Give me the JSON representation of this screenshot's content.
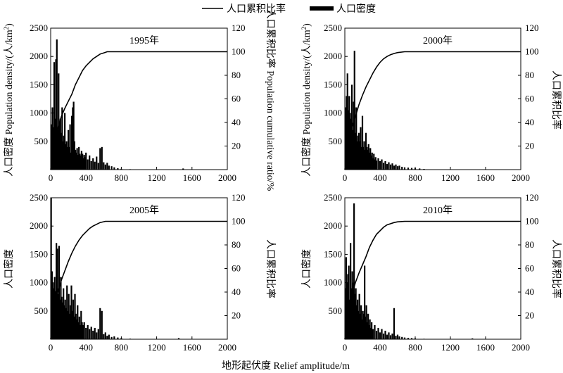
{
  "legend": {
    "line_label": "人口累积比率",
    "bar_label": "人口密度",
    "placement": "top-center"
  },
  "axes": {
    "xlabel": "地形起伏度 Relief amplitude/m",
    "ylabel_left": "人口密度 Population density/(人/km²)",
    "ylabel_left_top": "人口密度 Population density/(人/km",
    "ylabel_left_sup": "2",
    "ylabel_left_tail": ")",
    "ylabel_left_bottom": "人口密度",
    "ylabel_right": "人口累积比率 Population cumulative ratio/%",
    "ylabel_right_bottom": "人口累积比率",
    "x_ticks": [
      "0",
      "400",
      "800",
      "1200",
      "1600",
      "2000"
    ],
    "y_left_ticks": [
      "500",
      "1000",
      "1500",
      "2000",
      "2500"
    ],
    "y_right_ticks": [
      "20",
      "40",
      "60",
      "80",
      "100",
      "120"
    ]
  },
  "chart_data": [
    {
      "type": "bar",
      "title": "1995年",
      "xlim": [
        0,
        2000
      ],
      "ylim_left": [
        0,
        2500
      ],
      "ylim_right": [
        0,
        120
      ],
      "bars": [
        {
          "x": 10,
          "y": 800
        },
        {
          "x": 20,
          "y": 1100
        },
        {
          "x": 30,
          "y": 750
        },
        {
          "x": 40,
          "y": 1900
        },
        {
          "x": 50,
          "y": 900
        },
        {
          "x": 60,
          "y": 1950
        },
        {
          "x": 70,
          "y": 2300
        },
        {
          "x": 80,
          "y": 700
        },
        {
          "x": 90,
          "y": 1700
        },
        {
          "x": 100,
          "y": 850
        },
        {
          "x": 110,
          "y": 900
        },
        {
          "x": 120,
          "y": 650
        },
        {
          "x": 130,
          "y": 1100
        },
        {
          "x": 140,
          "y": 500
        },
        {
          "x": 150,
          "y": 600
        },
        {
          "x": 160,
          "y": 1000
        },
        {
          "x": 170,
          "y": 450
        },
        {
          "x": 180,
          "y": 500
        },
        {
          "x": 190,
          "y": 400
        },
        {
          "x": 200,
          "y": 700
        },
        {
          "x": 210,
          "y": 400
        },
        {
          "x": 220,
          "y": 800
        },
        {
          "x": 230,
          "y": 300
        },
        {
          "x": 240,
          "y": 950
        },
        {
          "x": 250,
          "y": 1100
        },
        {
          "x": 260,
          "y": 1200
        },
        {
          "x": 270,
          "y": 500
        },
        {
          "x": 280,
          "y": 350
        },
        {
          "x": 290,
          "y": 300
        },
        {
          "x": 300,
          "y": 380
        },
        {
          "x": 310,
          "y": 260
        },
        {
          "x": 320,
          "y": 400
        },
        {
          "x": 330,
          "y": 280
        },
        {
          "x": 340,
          "y": 250
        },
        {
          "x": 350,
          "y": 330
        },
        {
          "x": 360,
          "y": 280
        },
        {
          "x": 370,
          "y": 200
        },
        {
          "x": 380,
          "y": 260
        },
        {
          "x": 390,
          "y": 220
        },
        {
          "x": 400,
          "y": 300
        },
        {
          "x": 420,
          "y": 180
        },
        {
          "x": 440,
          "y": 250
        },
        {
          "x": 460,
          "y": 150
        },
        {
          "x": 480,
          "y": 200
        },
        {
          "x": 500,
          "y": 140
        },
        {
          "x": 520,
          "y": 230
        },
        {
          "x": 540,
          "y": 120
        },
        {
          "x": 560,
          "y": 380
        },
        {
          "x": 580,
          "y": 400
        },
        {
          "x": 600,
          "y": 130
        },
        {
          "x": 620,
          "y": 90
        },
        {
          "x": 640,
          "y": 120
        },
        {
          "x": 660,
          "y": 70
        },
        {
          "x": 690,
          "y": 60
        },
        {
          "x": 720,
          "y": 40
        },
        {
          "x": 760,
          "y": 25
        },
        {
          "x": 800,
          "y": 15
        },
        {
          "x": 900,
          "y": 8
        },
        {
          "x": 1000,
          "y": 5
        },
        {
          "x": 1500,
          "y": 20
        }
      ],
      "cumulative": [
        [
          0,
          0
        ],
        [
          40,
          20
        ],
        [
          80,
          35
        ],
        [
          120,
          45
        ],
        [
          160,
          52
        ],
        [
          200,
          58
        ],
        [
          240,
          64
        ],
        [
          280,
          72
        ],
        [
          320,
          78
        ],
        [
          360,
          84
        ],
        [
          400,
          88
        ],
        [
          440,
          91
        ],
        [
          480,
          94
        ],
        [
          520,
          96
        ],
        [
          560,
          98
        ],
        [
          600,
          99
        ],
        [
          640,
          100
        ],
        [
          700,
          100
        ],
        [
          800,
          100
        ],
        [
          2000,
          100
        ]
      ]
    },
    {
      "type": "bar",
      "title": "2000年",
      "xlim": [
        0,
        2000
      ],
      "ylim_left": [
        0,
        2500
      ],
      "ylim_right": [
        0,
        120
      ],
      "bars": [
        {
          "x": 10,
          "y": 1100
        },
        {
          "x": 20,
          "y": 1300
        },
        {
          "x": 30,
          "y": 1700
        },
        {
          "x": 40,
          "y": 1050
        },
        {
          "x": 50,
          "y": 1300
        },
        {
          "x": 60,
          "y": 1000
        },
        {
          "x": 70,
          "y": 900
        },
        {
          "x": 80,
          "y": 1500
        },
        {
          "x": 90,
          "y": 700
        },
        {
          "x": 100,
          "y": 1200
        },
        {
          "x": 110,
          "y": 2100
        },
        {
          "x": 120,
          "y": 650
        },
        {
          "x": 130,
          "y": 1100
        },
        {
          "x": 140,
          "y": 500
        },
        {
          "x": 150,
          "y": 600
        },
        {
          "x": 160,
          "y": 650
        },
        {
          "x": 170,
          "y": 500
        },
        {
          "x": 180,
          "y": 750
        },
        {
          "x": 190,
          "y": 400
        },
        {
          "x": 200,
          "y": 950
        },
        {
          "x": 210,
          "y": 400
        },
        {
          "x": 220,
          "y": 500
        },
        {
          "x": 230,
          "y": 350
        },
        {
          "x": 240,
          "y": 650
        },
        {
          "x": 250,
          "y": 400
        },
        {
          "x": 260,
          "y": 350
        },
        {
          "x": 270,
          "y": 450
        },
        {
          "x": 280,
          "y": 300
        },
        {
          "x": 290,
          "y": 380
        },
        {
          "x": 300,
          "y": 250
        },
        {
          "x": 310,
          "y": 300
        },
        {
          "x": 320,
          "y": 200
        },
        {
          "x": 330,
          "y": 280
        },
        {
          "x": 340,
          "y": 180
        },
        {
          "x": 350,
          "y": 220
        },
        {
          "x": 360,
          "y": 160
        },
        {
          "x": 380,
          "y": 200
        },
        {
          "x": 400,
          "y": 150
        },
        {
          "x": 420,
          "y": 180
        },
        {
          "x": 440,
          "y": 120
        },
        {
          "x": 460,
          "y": 150
        },
        {
          "x": 480,
          "y": 100
        },
        {
          "x": 500,
          "y": 130
        },
        {
          "x": 520,
          "y": 90
        },
        {
          "x": 540,
          "y": 110
        },
        {
          "x": 560,
          "y": 70
        },
        {
          "x": 580,
          "y": 90
        },
        {
          "x": 600,
          "y": 60
        },
        {
          "x": 620,
          "y": 70
        },
        {
          "x": 650,
          "y": 50
        },
        {
          "x": 680,
          "y": 40
        },
        {
          "x": 720,
          "y": 35
        },
        {
          "x": 760,
          "y": 30
        },
        {
          "x": 800,
          "y": 25
        },
        {
          "x": 850,
          "y": 20
        },
        {
          "x": 900,
          "y": 12
        },
        {
          "x": 1000,
          "y": 5
        }
      ],
      "cumulative": [
        [
          0,
          0
        ],
        [
          40,
          22
        ],
        [
          80,
          36
        ],
        [
          120,
          45
        ],
        [
          160,
          55
        ],
        [
          200,
          63
        ],
        [
          240,
          70
        ],
        [
          280,
          76
        ],
        [
          320,
          82
        ],
        [
          360,
          87
        ],
        [
          400,
          91
        ],
        [
          440,
          94
        ],
        [
          480,
          96
        ],
        [
          520,
          97.5
        ],
        [
          560,
          98.5
        ],
        [
          600,
          99.3
        ],
        [
          680,
          100
        ],
        [
          800,
          100
        ],
        [
          2000,
          100
        ]
      ]
    },
    {
      "type": "bar",
      "title": "2005年",
      "xlim": [
        0,
        2000
      ],
      "ylim_left": [
        0,
        2500
      ],
      "ylim_right": [
        0,
        120
      ],
      "bars": [
        {
          "x": 5,
          "y": 2500
        },
        {
          "x": 15,
          "y": 1200
        },
        {
          "x": 25,
          "y": 1000
        },
        {
          "x": 35,
          "y": 900
        },
        {
          "x": 45,
          "y": 1100
        },
        {
          "x": 55,
          "y": 850
        },
        {
          "x": 65,
          "y": 1700
        },
        {
          "x": 75,
          "y": 1600
        },
        {
          "x": 85,
          "y": 800
        },
        {
          "x": 95,
          "y": 1650
        },
        {
          "x": 105,
          "y": 700
        },
        {
          "x": 115,
          "y": 1100
        },
        {
          "x": 125,
          "y": 750
        },
        {
          "x": 135,
          "y": 650
        },
        {
          "x": 145,
          "y": 900
        },
        {
          "x": 155,
          "y": 600
        },
        {
          "x": 165,
          "y": 700
        },
        {
          "x": 175,
          "y": 550
        },
        {
          "x": 185,
          "y": 950
        },
        {
          "x": 195,
          "y": 500
        },
        {
          "x": 205,
          "y": 800
        },
        {
          "x": 215,
          "y": 450
        },
        {
          "x": 225,
          "y": 600
        },
        {
          "x": 235,
          "y": 950
        },
        {
          "x": 245,
          "y": 500
        },
        {
          "x": 255,
          "y": 700
        },
        {
          "x": 265,
          "y": 400
        },
        {
          "x": 275,
          "y": 800
        },
        {
          "x": 285,
          "y": 450
        },
        {
          "x": 295,
          "y": 350
        },
        {
          "x": 305,
          "y": 600
        },
        {
          "x": 315,
          "y": 300
        },
        {
          "x": 325,
          "y": 400
        },
        {
          "x": 335,
          "y": 250
        },
        {
          "x": 345,
          "y": 500
        },
        {
          "x": 355,
          "y": 300
        },
        {
          "x": 365,
          "y": 250
        },
        {
          "x": 380,
          "y": 300
        },
        {
          "x": 400,
          "y": 200
        },
        {
          "x": 420,
          "y": 250
        },
        {
          "x": 440,
          "y": 180
        },
        {
          "x": 460,
          "y": 220
        },
        {
          "x": 480,
          "y": 150
        },
        {
          "x": 500,
          "y": 200
        },
        {
          "x": 520,
          "y": 120
        },
        {
          "x": 540,
          "y": 180
        },
        {
          "x": 560,
          "y": 550
        },
        {
          "x": 580,
          "y": 500
        },
        {
          "x": 600,
          "y": 90
        },
        {
          "x": 620,
          "y": 120
        },
        {
          "x": 640,
          "y": 60
        },
        {
          "x": 660,
          "y": 80
        },
        {
          "x": 690,
          "y": 40
        },
        {
          "x": 720,
          "y": 50
        },
        {
          "x": 760,
          "y": 30
        },
        {
          "x": 800,
          "y": 20
        },
        {
          "x": 900,
          "y": 10
        },
        {
          "x": 1450,
          "y": 20
        }
      ],
      "cumulative": [
        [
          0,
          0
        ],
        [
          40,
          24
        ],
        [
          80,
          40
        ],
        [
          120,
          50
        ],
        [
          160,
          58
        ],
        [
          200,
          66
        ],
        [
          240,
          73
        ],
        [
          280,
          79
        ],
        [
          320,
          84
        ],
        [
          360,
          88
        ],
        [
          400,
          91
        ],
        [
          440,
          94
        ],
        [
          480,
          96
        ],
        [
          520,
          97.5
        ],
        [
          560,
          99
        ],
        [
          620,
          100
        ],
        [
          700,
          100
        ],
        [
          800,
          100
        ],
        [
          2000,
          100
        ]
      ]
    },
    {
      "type": "bar",
      "title": "2010年",
      "xlim": [
        0,
        2000
      ],
      "ylim_left": [
        0,
        2500
      ],
      "ylim_right": [
        0,
        120
      ],
      "bars": [
        {
          "x": 5,
          "y": 900
        },
        {
          "x": 15,
          "y": 1450
        },
        {
          "x": 25,
          "y": 1000
        },
        {
          "x": 35,
          "y": 1150
        },
        {
          "x": 45,
          "y": 1300
        },
        {
          "x": 55,
          "y": 700
        },
        {
          "x": 65,
          "y": 1700
        },
        {
          "x": 75,
          "y": 900
        },
        {
          "x": 85,
          "y": 1200
        },
        {
          "x": 95,
          "y": 1000
        },
        {
          "x": 105,
          "y": 2400
        },
        {
          "x": 115,
          "y": 800
        },
        {
          "x": 125,
          "y": 900
        },
        {
          "x": 135,
          "y": 600
        },
        {
          "x": 145,
          "y": 700
        },
        {
          "x": 155,
          "y": 500
        },
        {
          "x": 165,
          "y": 800
        },
        {
          "x": 175,
          "y": 450
        },
        {
          "x": 185,
          "y": 600
        },
        {
          "x": 195,
          "y": 350
        },
        {
          "x": 205,
          "y": 500
        },
        {
          "x": 215,
          "y": 450
        },
        {
          "x": 225,
          "y": 1300
        },
        {
          "x": 235,
          "y": 400
        },
        {
          "x": 245,
          "y": 600
        },
        {
          "x": 255,
          "y": 300
        },
        {
          "x": 265,
          "y": 450
        },
        {
          "x": 275,
          "y": 250
        },
        {
          "x": 285,
          "y": 350
        },
        {
          "x": 295,
          "y": 200
        },
        {
          "x": 305,
          "y": 300
        },
        {
          "x": 320,
          "y": 180
        },
        {
          "x": 340,
          "y": 250
        },
        {
          "x": 360,
          "y": 150
        },
        {
          "x": 380,
          "y": 200
        },
        {
          "x": 400,
          "y": 120
        },
        {
          "x": 420,
          "y": 180
        },
        {
          "x": 440,
          "y": 100
        },
        {
          "x": 460,
          "y": 150
        },
        {
          "x": 480,
          "y": 80
        },
        {
          "x": 500,
          "y": 120
        },
        {
          "x": 520,
          "y": 70
        },
        {
          "x": 540,
          "y": 100
        },
        {
          "x": 560,
          "y": 550
        },
        {
          "x": 580,
          "y": 60
        },
        {
          "x": 600,
          "y": 80
        },
        {
          "x": 620,
          "y": 50
        },
        {
          "x": 650,
          "y": 40
        },
        {
          "x": 680,
          "y": 30
        },
        {
          "x": 720,
          "y": 25
        },
        {
          "x": 760,
          "y": 20
        },
        {
          "x": 800,
          "y": 15
        },
        {
          "x": 900,
          "y": 8
        },
        {
          "x": 1450,
          "y": 15
        }
      ],
      "cumulative": [
        [
          0,
          0
        ],
        [
          40,
          22
        ],
        [
          80,
          37
        ],
        [
          120,
          48
        ],
        [
          160,
          56
        ],
        [
          200,
          63
        ],
        [
          240,
          70
        ],
        [
          280,
          78
        ],
        [
          320,
          84
        ],
        [
          360,
          89
        ],
        [
          400,
          92
        ],
        [
          440,
          95
        ],
        [
          480,
          97
        ],
        [
          520,
          98
        ],
        [
          560,
          99
        ],
        [
          600,
          99.6
        ],
        [
          680,
          100
        ],
        [
          800,
          100
        ],
        [
          2000,
          100
        ]
      ]
    }
  ]
}
